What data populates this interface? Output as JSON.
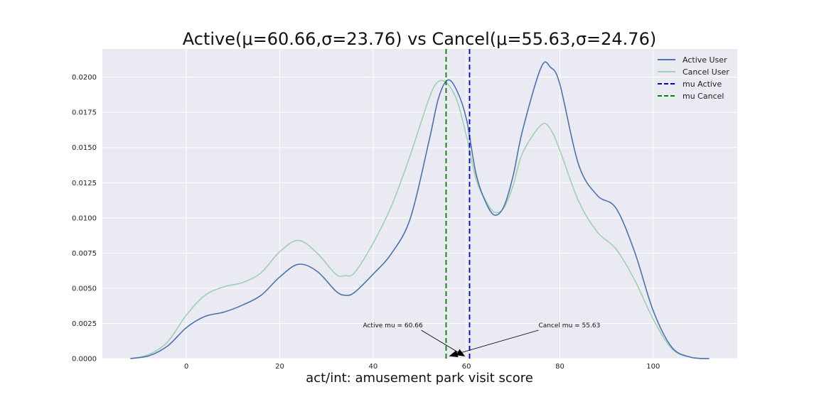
{
  "chart_data": {
    "type": "line",
    "title": "Active(μ=60.66,σ=23.76) vs Cancel(μ=55.63,σ=24.76)",
    "xlabel": "act/int: amusement park visit score",
    "ylabel": "",
    "xlim": [
      -18,
      118
    ],
    "ylim": [
      0,
      0.022
    ],
    "xticks": [
      0,
      20,
      40,
      60,
      80,
      100
    ],
    "yticks": [
      0.0,
      0.0025,
      0.005,
      0.0075,
      0.01,
      0.0125,
      0.015,
      0.0175,
      0.02
    ],
    "ytick_labels": [
      "0.0000",
      "0.0025",
      "0.0050",
      "0.0075",
      "0.0100",
      "0.0125",
      "0.0150",
      "0.0175",
      "0.0200"
    ],
    "grid": true,
    "legend_position": "top-right",
    "background": "#e9eaf2",
    "series": [
      {
        "name": "Active User",
        "color": "#4c72b0",
        "style": "solid",
        "x": [
          -12,
          -8,
          -4,
          0,
          4,
          8,
          12,
          16,
          20,
          24,
          28,
          32,
          34,
          36,
          40,
          44,
          48,
          52,
          54,
          56,
          58,
          60,
          62,
          64,
          66,
          68,
          70,
          72,
          76,
          78,
          80,
          84,
          88,
          92,
          96,
          100,
          104,
          108,
          112
        ],
        "y": [
          0.0,
          0.0002,
          0.0009,
          0.0022,
          0.003,
          0.0033,
          0.0038,
          0.0045,
          0.0058,
          0.0067,
          0.0062,
          0.0048,
          0.0045,
          0.0047,
          0.006,
          0.0075,
          0.01,
          0.0155,
          0.0185,
          0.0198,
          0.019,
          0.017,
          0.0132,
          0.0112,
          0.0102,
          0.0108,
          0.013,
          0.0162,
          0.0207,
          0.0207,
          0.0195,
          0.0138,
          0.0116,
          0.0107,
          0.0076,
          0.0034,
          0.0008,
          0.0001,
          0.0
        ]
      },
      {
        "name": "Cancel User",
        "color": "#9fd0b2",
        "style": "solid",
        "x": [
          -12,
          -8,
          -4,
          0,
          4,
          8,
          12,
          16,
          20,
          24,
          28,
          32,
          34,
          36,
          40,
          44,
          48,
          52,
          54,
          56,
          58,
          60,
          62,
          64,
          66,
          68,
          70,
          72,
          76,
          78,
          80,
          84,
          88,
          92,
          96,
          100,
          104,
          108,
          112
        ],
        "y": [
          0.0,
          0.0003,
          0.0012,
          0.0031,
          0.0045,
          0.0051,
          0.0054,
          0.0061,
          0.0076,
          0.0084,
          0.0075,
          0.006,
          0.0059,
          0.0061,
          0.0082,
          0.0109,
          0.0145,
          0.0185,
          0.0197,
          0.0195,
          0.0183,
          0.0158,
          0.0128,
          0.0113,
          0.0104,
          0.0107,
          0.0123,
          0.0146,
          0.0166,
          0.0163,
          0.0148,
          0.0112,
          0.009,
          0.0078,
          0.0056,
          0.0028,
          0.0007,
          0.0001,
          0.0
        ]
      }
    ],
    "vlines": [
      {
        "name": "mu Active",
        "x": 60.66,
        "color": "#0000cc",
        "style": "dashed"
      },
      {
        "name": "mu Cancel",
        "x": 55.63,
        "color": "#008000",
        "style": "dashed"
      }
    ],
    "annotations": [
      {
        "text": "Active mu = 60.66",
        "target_x": 60.66,
        "target_y": 0.0,
        "anchor": "left"
      },
      {
        "text": "Cancel mu = 55.63",
        "target_x": 55.63,
        "target_y": 0.0,
        "anchor": "right"
      }
    ]
  }
}
